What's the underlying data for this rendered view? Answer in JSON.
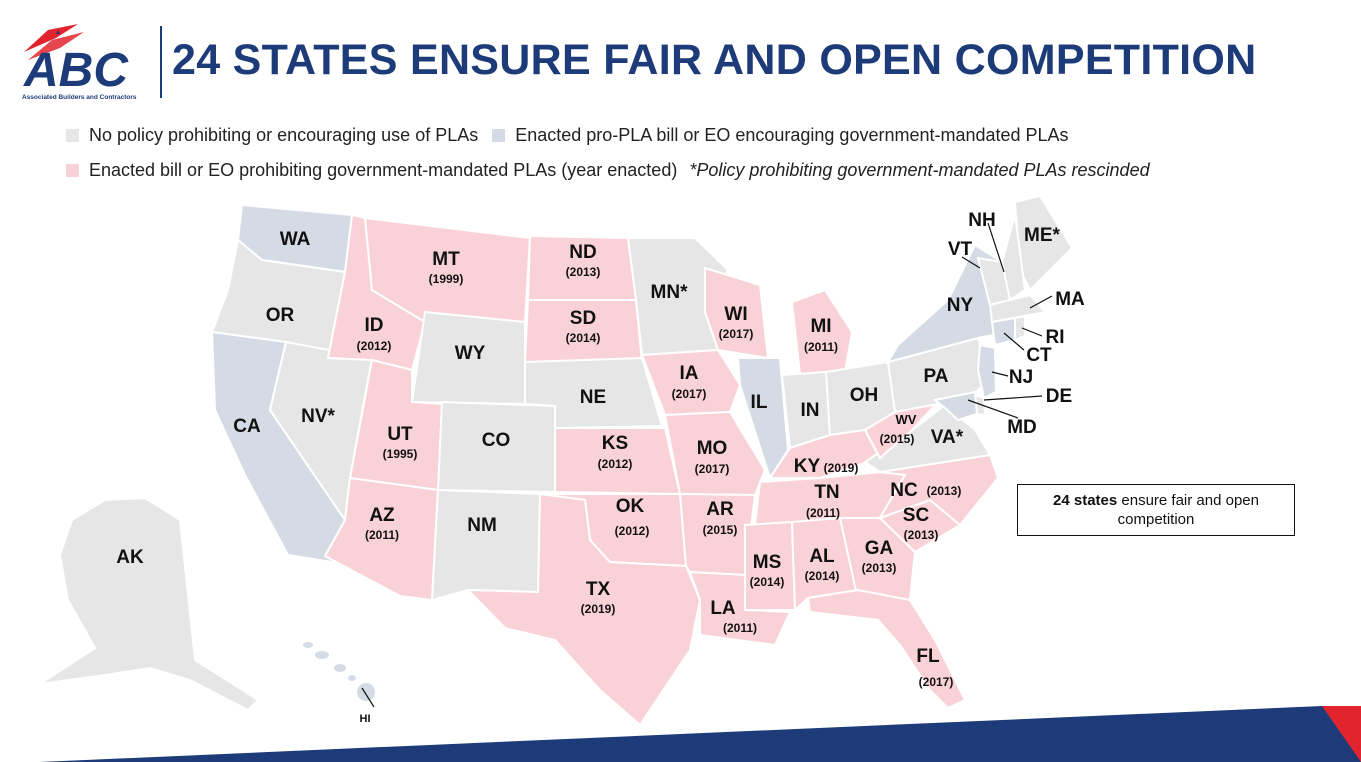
{
  "logo": {
    "text": "ABC",
    "tagline": "Associated Builders and Contractors"
  },
  "title": "24 STATES ENSURE FAIR AND OPEN COMPETITION",
  "colors": {
    "none": "#e6e6e6",
    "pro_pla": "#d5dbe5",
    "prohibit": "#f9d2d8",
    "brand_blue": "#1d3b78",
    "brand_red": "#e2242e"
  },
  "legend": {
    "none": "No policy prohibiting or encouraging use of PLAs",
    "pro_pla": "Enacted pro-PLA bill or EO encouraging government-mandated PLAs",
    "prohibit": "Enacted bill or EO prohibiting government-mandated PLAs (year enacted)",
    "note": "*Policy prohibiting government-mandated PLAs rescinded"
  },
  "states": {
    "WA": {
      "label": "WA",
      "year": ""
    },
    "OR": {
      "label": "OR",
      "year": ""
    },
    "CA": {
      "label": "CA",
      "year": ""
    },
    "NV": {
      "label": "NV*",
      "year": ""
    },
    "ID": {
      "label": "ID",
      "year": "(2012)"
    },
    "MT": {
      "label": "MT",
      "year": "(1999)"
    },
    "WY": {
      "label": "WY",
      "year": ""
    },
    "UT": {
      "label": "UT",
      "year": "(1995)"
    },
    "AZ": {
      "label": "AZ",
      "year": "(2011)"
    },
    "CO": {
      "label": "CO",
      "year": ""
    },
    "NM": {
      "label": "NM",
      "year": ""
    },
    "ND": {
      "label": "ND",
      "year": "(2013)"
    },
    "SD": {
      "label": "SD",
      "year": "(2014)"
    },
    "NE": {
      "label": "NE",
      "year": ""
    },
    "KS": {
      "label": "KS",
      "year": "(2012)"
    },
    "OK": {
      "label": "OK",
      "year": "(2012)"
    },
    "TX": {
      "label": "TX",
      "year": "(2019)"
    },
    "MN": {
      "label": "MN*",
      "year": ""
    },
    "IA": {
      "label": "IA",
      "year": "(2017)"
    },
    "MO": {
      "label": "MO",
      "year": "(2017)"
    },
    "AR": {
      "label": "AR",
      "year": "(2015)"
    },
    "LA": {
      "label": "LA",
      "year": "(2011)"
    },
    "WI": {
      "label": "WI",
      "year": "(2017)"
    },
    "IL": {
      "label": "IL",
      "year": ""
    },
    "MI": {
      "label": "MI",
      "year": "(2011)"
    },
    "IN": {
      "label": "IN",
      "year": ""
    },
    "OH": {
      "label": "OH",
      "year": ""
    },
    "KY": {
      "label": "KY",
      "year": "(2019)"
    },
    "TN": {
      "label": "TN",
      "year": "(2011)"
    },
    "MS": {
      "label": "MS",
      "year": "(2014)"
    },
    "AL": {
      "label": "AL",
      "year": "(2014)"
    },
    "GA": {
      "label": "GA",
      "year": "(2013)"
    },
    "FL": {
      "label": "FL",
      "year": "(2017)"
    },
    "SC": {
      "label": "SC",
      "year": "(2013)"
    },
    "NC": {
      "label": "NC",
      "year": "(2013)"
    },
    "VA": {
      "label": "VA*",
      "year": ""
    },
    "WV": {
      "label": "WV",
      "year": "(2015)"
    },
    "PA": {
      "label": "PA",
      "year": ""
    },
    "NY": {
      "label": "NY",
      "year": ""
    },
    "ME": {
      "label": "ME*",
      "year": ""
    },
    "NH": {
      "label": "NH",
      "year": ""
    },
    "VT": {
      "label": "VT",
      "year": ""
    },
    "MA": {
      "label": "MA",
      "year": ""
    },
    "RI": {
      "label": "RI",
      "year": ""
    },
    "CT": {
      "label": "CT",
      "year": ""
    },
    "NJ": {
      "label": "NJ",
      "year": ""
    },
    "DE": {
      "label": "DE",
      "year": ""
    },
    "MD": {
      "label": "MD",
      "year": ""
    },
    "AK": {
      "label": "AK",
      "year": ""
    },
    "HI": {
      "label": "HI",
      "year": ""
    }
  },
  "summary": {
    "bold": "24 states",
    "rest": "ensure fair and open",
    "line2": "competition"
  }
}
